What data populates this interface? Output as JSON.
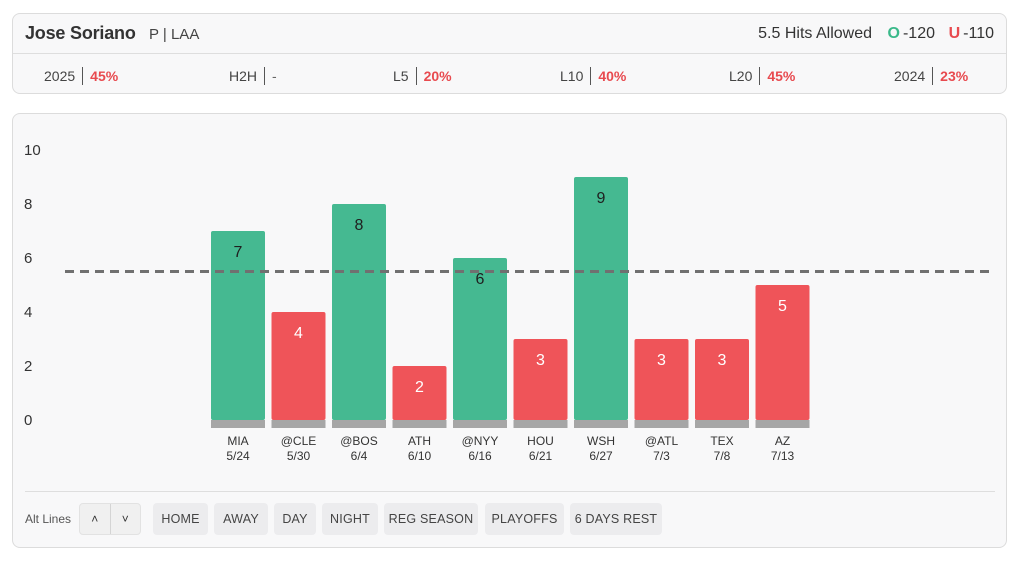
{
  "header": {
    "player_name": "Jose Soriano",
    "player_meta": "P | LAA",
    "prop_line": "5.5 Hits Allowed",
    "over": {
      "letter": "O",
      "odds": "-120"
    },
    "under": {
      "letter": "U",
      "odds": "-110"
    },
    "stats": [
      {
        "label": "2025",
        "value": "45%"
      },
      {
        "label": "H2H",
        "value": "-"
      },
      {
        "label": "L5",
        "value": "20%"
      },
      {
        "label": "L10",
        "value": "40%"
      },
      {
        "label": "L20",
        "value": "45%"
      },
      {
        "label": "2024",
        "value": "23%"
      }
    ]
  },
  "colors": {
    "over": "#45b991",
    "under": "#ef5459",
    "base": "#a6a6a6",
    "line": "#707070"
  },
  "chart_data": {
    "type": "bar",
    "title": "",
    "xlabel": "",
    "ylabel": "",
    "ylim": [
      0,
      10
    ],
    "yticks": [
      0,
      2,
      4,
      6,
      8,
      10
    ],
    "threshold": 5.5,
    "categories": [
      {
        "opponent": "MIA",
        "date": "5/24"
      },
      {
        "opponent": "@CLE",
        "date": "5/30"
      },
      {
        "opponent": "@BOS",
        "date": "6/4"
      },
      {
        "opponent": "ATH",
        "date": "6/10"
      },
      {
        "opponent": "@NYY",
        "date": "6/16"
      },
      {
        "opponent": "HOU",
        "date": "6/21"
      },
      {
        "opponent": "WSH",
        "date": "6/27"
      },
      {
        "opponent": "@ATL",
        "date": "7/3"
      },
      {
        "opponent": "TEX",
        "date": "7/8"
      },
      {
        "opponent": "AZ",
        "date": "7/13"
      }
    ],
    "values": [
      7,
      4,
      8,
      2,
      6,
      3,
      9,
      3,
      3,
      5
    ]
  },
  "controls": {
    "alt_lines_label": "Alt Lines",
    "up_icon": "˄",
    "down_icon": "˅",
    "filters": [
      "HOME",
      "AWAY",
      "DAY",
      "NIGHT",
      "REG SEASON",
      "PLAYOFFS",
      "6 DAYS REST"
    ]
  }
}
